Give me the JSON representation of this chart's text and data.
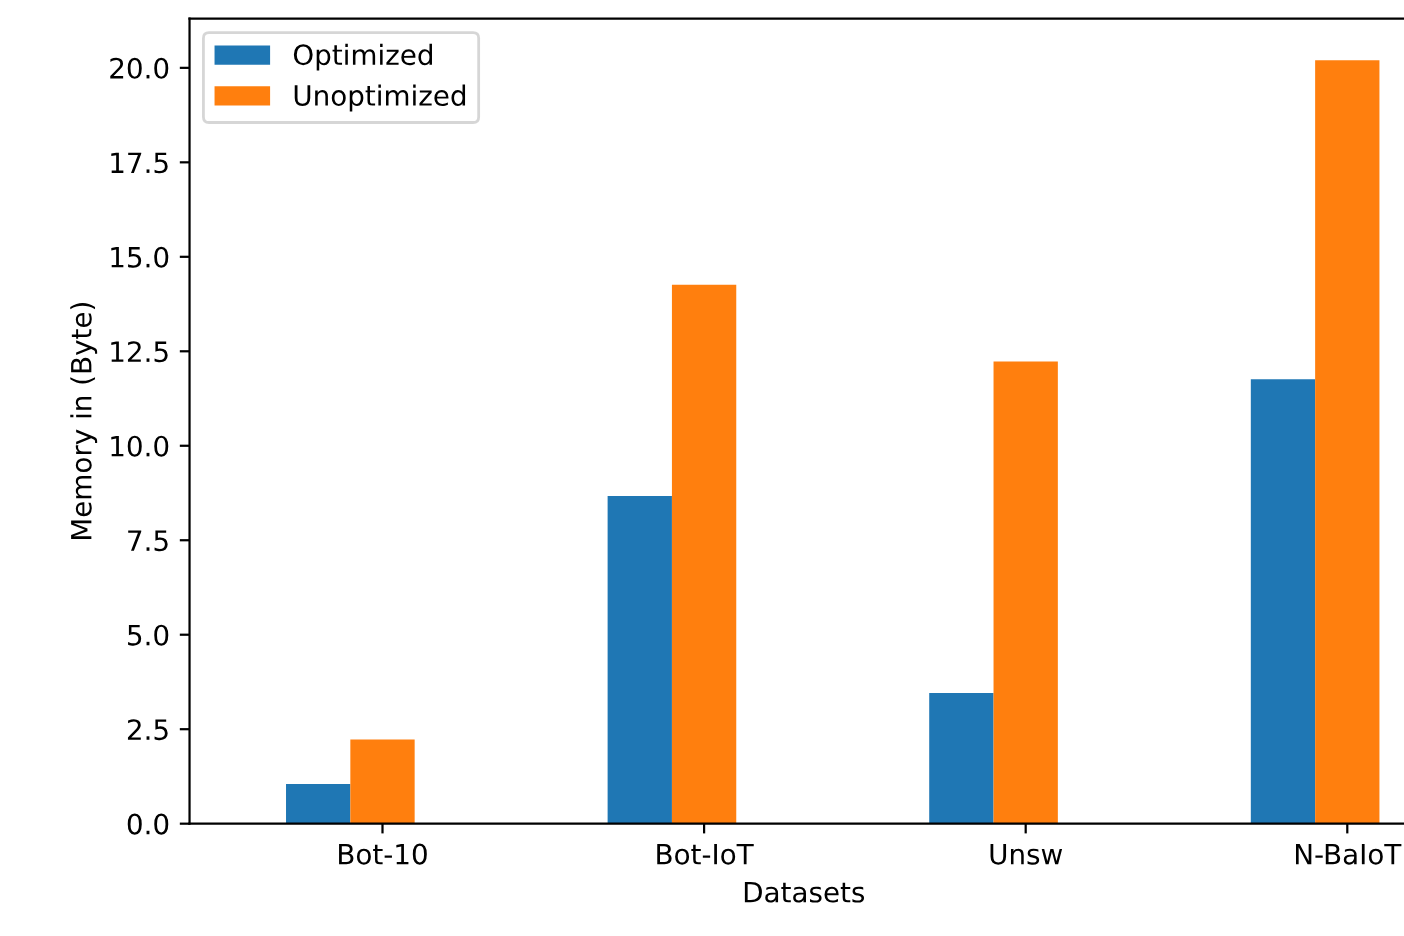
{
  "chart_data": {
    "type": "bar",
    "xlabel": "Datasets",
    "ylabel": "Memory in (Byte)",
    "categories": [
      "Bot-10",
      "Bot-IoT",
      "Unsw",
      "N-BaIoT"
    ],
    "series": [
      {
        "name": "Optimized",
        "color": "#1f77b4",
        "values": [
          1.05,
          8.67,
          3.46,
          11.76
        ]
      },
      {
        "name": "Unoptimized",
        "color": "#ff7f0e",
        "values": [
          2.23,
          14.26,
          12.23,
          20.2
        ]
      }
    ],
    "ylim": [
      0,
      21.3
    ],
    "yticks": [
      {
        "value": 0,
        "label": "0.0"
      },
      {
        "value": 2.5,
        "label": "2.5"
      },
      {
        "value": 5,
        "label": "5.0"
      },
      {
        "value": 7.5,
        "label": "7.5"
      },
      {
        "value": 10,
        "label": "10.0"
      },
      {
        "value": 12.5,
        "label": "12.5"
      },
      {
        "value": 15,
        "label": "15.0"
      },
      {
        "value": 17.5,
        "label": "17.5"
      },
      {
        "value": 20,
        "label": "20.0"
      }
    ],
    "legend": "top left",
    "grid": false
  }
}
